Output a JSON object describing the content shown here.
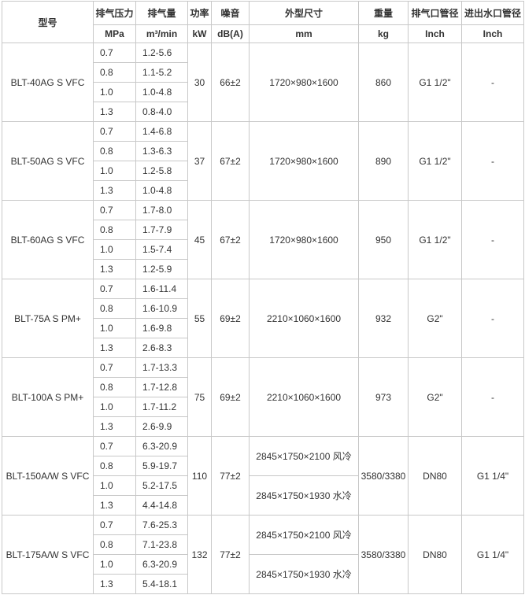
{
  "header": {
    "columns": [
      "型号",
      "排气压力",
      "排气量",
      "功率",
      "噪音",
      "外型尺寸",
      "重量",
      "排气口管径",
      "进出水口管径"
    ],
    "units": [
      "MPa",
      "m³/min",
      "kW",
      "dB(A)",
      "mm",
      "kg",
      "Inch",
      "Inch"
    ]
  },
  "models": [
    {
      "name": "BLT-40AG S VFC",
      "power": "30",
      "noise": "66±2",
      "dimensions": [
        "1720×980×1600"
      ],
      "weight": "860",
      "outlet": "G1 1/2\"",
      "water": "-",
      "rows": [
        {
          "pressure": "0.7",
          "flow": "1.2-5.6"
        },
        {
          "pressure": "0.8",
          "flow": "1.1-5.2"
        },
        {
          "pressure": "1.0",
          "flow": "1.0-4.8"
        },
        {
          "pressure": "1.3",
          "flow": "0.8-4.0"
        }
      ]
    },
    {
      "name": "BLT-50AG S VFC",
      "power": "37",
      "noise": "67±2",
      "dimensions": [
        "1720×980×1600"
      ],
      "weight": "890",
      "outlet": "G1 1/2\"",
      "water": "-",
      "rows": [
        {
          "pressure": "0.7",
          "flow": "1.4-6.8"
        },
        {
          "pressure": "0.8",
          "flow": "1.3-6.3"
        },
        {
          "pressure": "1.0",
          "flow": "1.2-5.8"
        },
        {
          "pressure": "1.3",
          "flow": "1.0-4.8"
        }
      ]
    },
    {
      "name": "BLT-60AG S VFC",
      "power": "45",
      "noise": "67±2",
      "dimensions": [
        "1720×980×1600"
      ],
      "weight": "950",
      "outlet": "G1 1/2\"",
      "water": "-",
      "rows": [
        {
          "pressure": "0.7",
          "flow": "1.7-8.0"
        },
        {
          "pressure": "0.8",
          "flow": "1.7-7.9"
        },
        {
          "pressure": "1.0",
          "flow": "1.5-7.4"
        },
        {
          "pressure": "1.3",
          "flow": "1.2-5.9"
        }
      ]
    },
    {
      "name": "BLT-75A S PM+",
      "power": "55",
      "noise": "69±2",
      "dimensions": [
        "2210×1060×1600"
      ],
      "weight": "932",
      "outlet": "G2\"",
      "water": "-",
      "rows": [
        {
          "pressure": "0.7",
          "flow": "1.6-11.4"
        },
        {
          "pressure": "0.8",
          "flow": "1.6-10.9"
        },
        {
          "pressure": "1.0",
          "flow": "1.6-9.8"
        },
        {
          "pressure": "1.3",
          "flow": "2.6-8.3"
        }
      ]
    },
    {
      "name": "BLT-100A S PM+",
      "power": "75",
      "noise": "69±2",
      "dimensions": [
        "2210×1060×1600"
      ],
      "weight": "973",
      "outlet": "G2\"",
      "water": "-",
      "rows": [
        {
          "pressure": "0.7",
          "flow": "1.7-13.3"
        },
        {
          "pressure": "0.8",
          "flow": "1.7-12.8"
        },
        {
          "pressure": "1.0",
          "flow": "1.7-11.2"
        },
        {
          "pressure": "1.3",
          "flow": "2.6-9.9"
        }
      ]
    },
    {
      "name": "BLT-150A/W S VFC",
      "power": "110",
      "noise": "77±2",
      "dimensions": [
        "2845×1750×2100 风冷",
        "2845×1750×1930 水冷"
      ],
      "weight": "3580/3380",
      "outlet": "DN80",
      "water": "G1 1/4\"",
      "rows": [
        {
          "pressure": "0.7",
          "flow": "6.3-20.9"
        },
        {
          "pressure": "0.8",
          "flow": "5.9-19.7"
        },
        {
          "pressure": "1.0",
          "flow": "5.2-17.5"
        },
        {
          "pressure": "1.3",
          "flow": "4.4-14.8"
        }
      ]
    },
    {
      "name": "BLT-175A/W S VFC",
      "power": "132",
      "noise": "77±2",
      "dimensions": [
        "2845×1750×2100 风冷",
        "2845×1750×1930 水冷"
      ],
      "weight": "3580/3380",
      "outlet": "DN80",
      "water": "G1 1/4\"",
      "rows": [
        {
          "pressure": "0.7",
          "flow": "7.6-25.3"
        },
        {
          "pressure": "0.8",
          "flow": "7.1-23.8"
        },
        {
          "pressure": "1.0",
          "flow": "6.3-20.9"
        },
        {
          "pressure": "1.3",
          "flow": "5.4-18.1"
        }
      ]
    }
  ]
}
